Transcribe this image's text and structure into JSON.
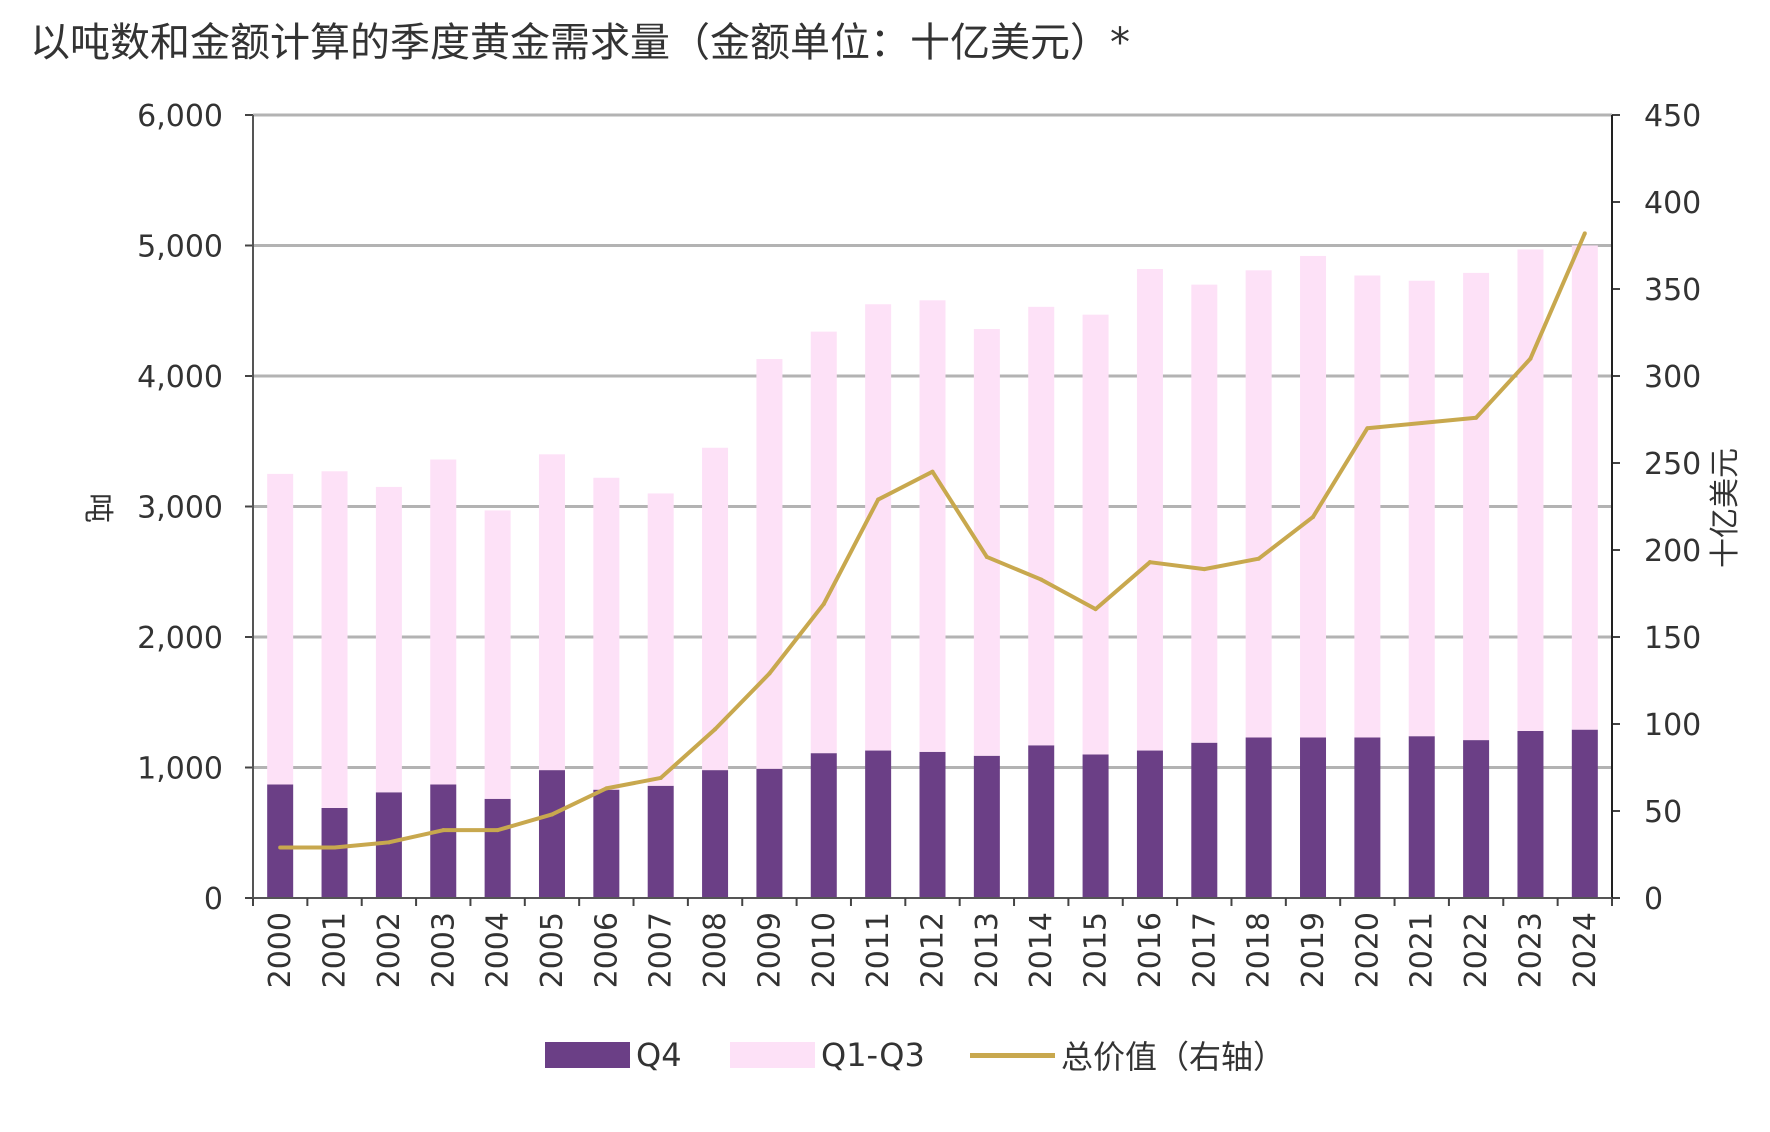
{
  "title": "以吨数和金额计算的季度黄金需求量（金额单位：十亿美元）*",
  "chart_data": {
    "type": "bar",
    "stacked": true,
    "categories": [
      "2000",
      "2001",
      "2002",
      "2003",
      "2004",
      "2005",
      "2006",
      "2007",
      "2008",
      "2009",
      "2010",
      "2011",
      "2012",
      "2013",
      "2014",
      "2015",
      "2016",
      "2017",
      "2018",
      "2019",
      "2020",
      "2021",
      "2022",
      "2023",
      "2024"
    ],
    "series": [
      {
        "name": "Q4",
        "color": "#6b3f86",
        "axis": "left",
        "values": [
          870,
          690,
          810,
          870,
          760,
          980,
          830,
          860,
          980,
          990,
          1110,
          1130,
          1120,
          1090,
          1170,
          1100,
          1130,
          1190,
          1230,
          1230,
          1230,
          1240,
          1210,
          1280,
          1290
        ]
      },
      {
        "name": "Q1-Q3",
        "color": "#fde1f7",
        "axis": "left",
        "values": [
          2380,
          2580,
          2340,
          2490,
          2210,
          2420,
          2390,
          2240,
          2470,
          3140,
          3230,
          3420,
          3460,
          3270,
          3360,
          3370,
          3690,
          3510,
          3580,
          3690,
          3540,
          3490,
          3580,
          3690,
          3710
        ]
      },
      {
        "name": "总价值（右轴）",
        "type": "line",
        "color": "#c8a84e",
        "axis": "right",
        "values": [
          29,
          29,
          32,
          39,
          39,
          48,
          63,
          69,
          97,
          129,
          169,
          229,
          245,
          196,
          183,
          166,
          193,
          189,
          195,
          219,
          270,
          273,
          276,
          310,
          382
        ]
      }
    ],
    "ylabel_left": "吨",
    "ylabel_right": "十亿美元",
    "ylim_left": [
      0,
      6000
    ],
    "ylim_right": [
      0,
      450
    ],
    "yticks_left": [
      "0",
      "1,000",
      "2,000",
      "3,000",
      "4,000",
      "5,000",
      "6,000"
    ],
    "yticks_right": [
      "0",
      "50",
      "100",
      "150",
      "200",
      "250",
      "300",
      "350",
      "400",
      "450"
    ],
    "grid": true,
    "legend_position": "bottom"
  }
}
